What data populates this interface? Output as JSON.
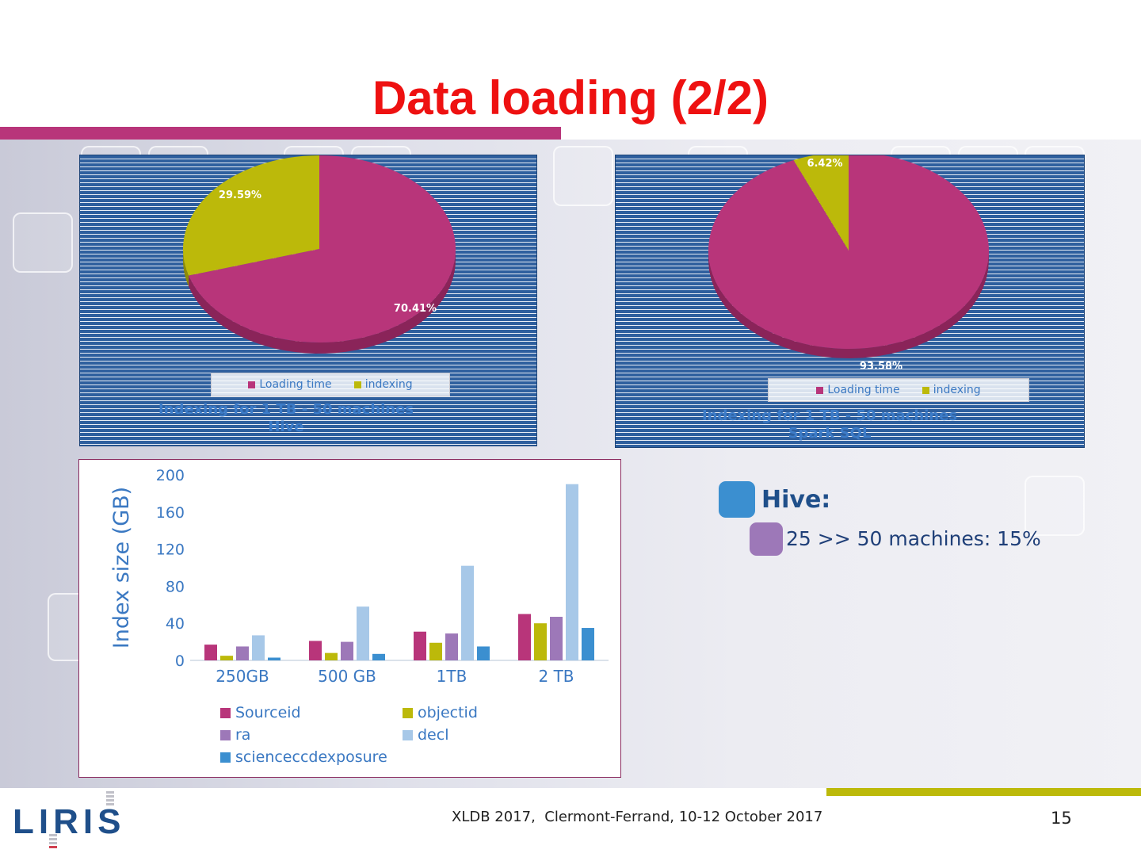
{
  "slide": {
    "title": "Data loading (2/2)",
    "footer": "XLDB 2017,  Clermont-Ferrand, 10-12 October 2017",
    "page_number": "15",
    "logo_text": "LIRIS"
  },
  "colors": {
    "title": "#ee1111",
    "magenta": "#b8357a",
    "olive": "#bcb90a",
    "purple": "#9d78b8",
    "light_blue": "#a7c8e8",
    "blue": "#3b8fd0",
    "panel_blue": "#2e5f9e",
    "text_blue": "#3a78c2"
  },
  "bullets": {
    "hive_label": "Hive:",
    "hive_detail": "25 >> 50 machines: 15%"
  },
  "chart_data": [
    {
      "type": "pie",
      "title": "Indexing for 1 TB - 50 machines\nHive",
      "labels": [
        "Loading time",
        "indexing"
      ],
      "values": [
        70.41,
        29.59
      ],
      "value_labels": [
        "70.41%",
        "29.59%"
      ],
      "legend": "bottom"
    },
    {
      "type": "pie",
      "title": "Indexing for 1 TB - 50 machines\nSpark SQL",
      "labels": [
        "Loading time",
        "indexing"
      ],
      "values": [
        93.58,
        6.42
      ],
      "value_labels": [
        "93.58%",
        "6.42%"
      ],
      "legend": "bottom"
    },
    {
      "type": "bar",
      "categories": [
        "250GB",
        "500 GB",
        "1TB",
        "2 TB"
      ],
      "series": [
        {
          "name": "Sourceid",
          "values": [
            17,
            21,
            31,
            50
          ]
        },
        {
          "name": "objectid",
          "values": [
            5,
            8,
            19,
            40
          ]
        },
        {
          "name": "ra",
          "values": [
            15,
            20,
            29,
            47
          ]
        },
        {
          "name": "decl",
          "values": [
            27,
            58,
            102,
            190
          ]
        },
        {
          "name": "scienceccdexposure",
          "values": [
            3,
            7,
            15,
            35
          ]
        }
      ],
      "ylabel": "Index size (GB)",
      "yticks": [
        "0",
        "40",
        "80",
        "120",
        "160",
        "200"
      ],
      "ylim": [
        0,
        200
      ],
      "legend": "bottom"
    }
  ]
}
